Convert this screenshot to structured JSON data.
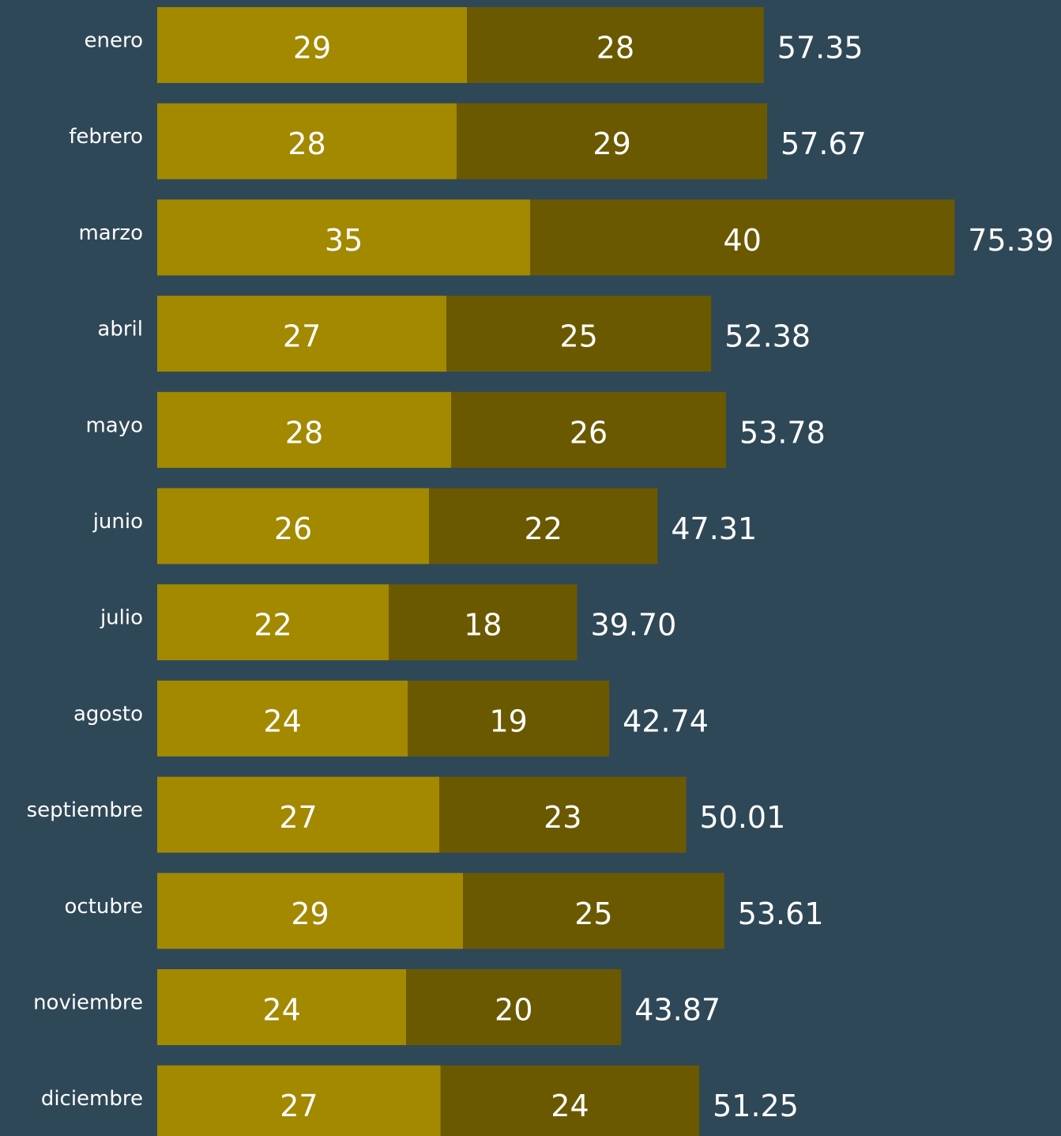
{
  "chart_data": {
    "type": "stacked-barh",
    "categories": [
      "enero",
      "febrero",
      "marzo",
      "abril",
      "mayo",
      "junio",
      "julio",
      "agosto",
      "septiembre",
      "octubre",
      "noviembre",
      "diciembre"
    ],
    "series": [
      {
        "color": "#a38900",
        "values": [
          29.29,
          28.32,
          35.27,
          27.35,
          27.79,
          25.7,
          21.89,
          23.69,
          26.67,
          28.91,
          23.54,
          26.8
        ],
        "value_labels": [
          "29",
          "28",
          "35",
          "27",
          "28",
          "26",
          "22",
          "24",
          "27",
          "29",
          "24",
          "27"
        ]
      },
      {
        "color": "#6b5900",
        "values": [
          28.06,
          29.35,
          40.12,
          25.03,
          25.99,
          21.61,
          17.81,
          19.05,
          23.34,
          24.7,
          20.33,
          24.45
        ],
        "value_labels": [
          "28",
          "29",
          "40",
          "25",
          "26",
          "22",
          "18",
          "19",
          "23",
          "25",
          "20",
          "24"
        ]
      }
    ],
    "totals": [
      57.35,
      57.67,
      75.39,
      52.38,
      53.78,
      47.31,
      39.7,
      42.74,
      50.01,
      53.61,
      43.87,
      51.25
    ],
    "total_labels": [
      "57.35",
      "57.67",
      "75.39",
      "52.38",
      "53.78",
      "47.31",
      "39.70",
      "42.74",
      "50.01",
      "53.61",
      "43.87",
      "51.25"
    ],
    "xlim": [
      0,
      80
    ]
  }
}
